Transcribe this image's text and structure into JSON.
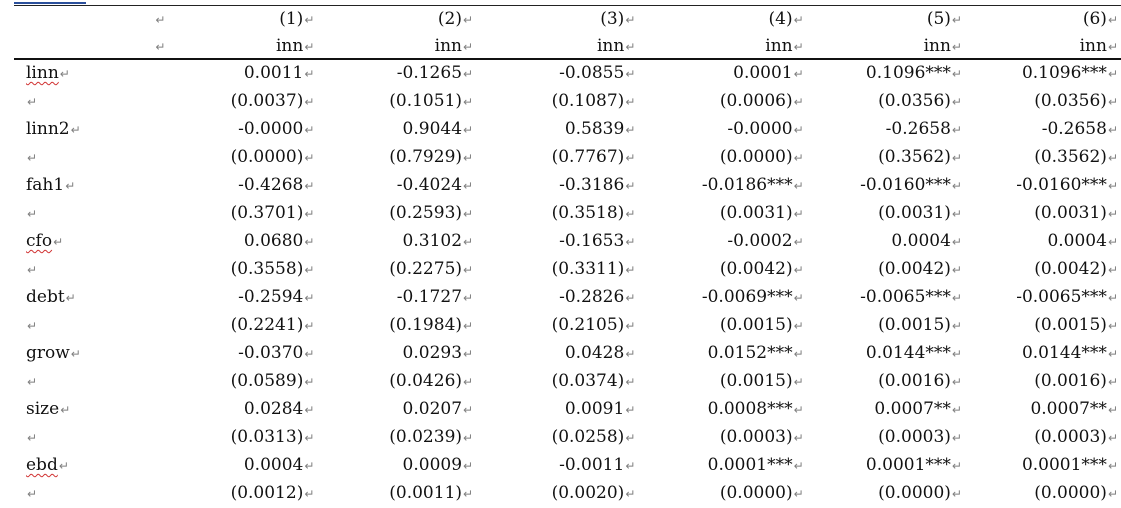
{
  "document": {
    "paragraph_mark": "↵",
    "headers": {
      "numbers": [
        "(1)",
        "(2)",
        "(3)",
        "(4)",
        "(5)",
        "(6)"
      ],
      "depvar": [
        "inn",
        "inn",
        "inn",
        "inn",
        "inn",
        "inn"
      ]
    },
    "rows": [
      {
        "var": "linn",
        "squiggle": true,
        "coef": [
          "0.0011",
          "-0.1265",
          "-0.0855",
          "0.0001",
          "0.1096***",
          "0.1096***"
        ],
        "se": [
          "(0.0037)",
          "(0.1051)",
          "(0.1087)",
          "(0.0006)",
          "(0.0356)",
          "(0.0356)"
        ]
      },
      {
        "var": "linn2",
        "squiggle": false,
        "coef": [
          "-0.0000",
          "0.9044",
          "0.5839",
          "-0.0000",
          "-0.2658",
          "-0.2658"
        ],
        "se": [
          "(0.0000)",
          "(0.7929)",
          "(0.7767)",
          "(0.0000)",
          "(0.3562)",
          "(0.3562)"
        ]
      },
      {
        "var": "fah1",
        "squiggle": false,
        "coef": [
          "-0.4268",
          "-0.4024",
          "-0.3186",
          "-0.0186***",
          "-0.0160***",
          "-0.0160***"
        ],
        "se": [
          "(0.3701)",
          "(0.2593)",
          "(0.3518)",
          "(0.0031)",
          "(0.0031)",
          "(0.0031)"
        ]
      },
      {
        "var": "cfo",
        "squiggle": true,
        "coef": [
          "0.0680",
          "0.3102",
          "-0.1653",
          "-0.0002",
          "0.0004",
          "0.0004"
        ],
        "se": [
          "(0.3558)",
          "(0.2275)",
          "(0.3311)",
          "(0.0042)",
          "(0.0042)",
          "(0.0042)"
        ]
      },
      {
        "var": "debt",
        "squiggle": false,
        "coef": [
          "-0.2594",
          "-0.1727",
          "-0.2826",
          "-0.0069***",
          "-0.0065***",
          "-0.0065***"
        ],
        "se": [
          "(0.2241)",
          "(0.1984)",
          "(0.2105)",
          "(0.0015)",
          "(0.0015)",
          "(0.0015)"
        ]
      },
      {
        "var": "grow",
        "squiggle": false,
        "coef": [
          "-0.0370",
          "0.0293",
          "0.0428",
          "0.0152***",
          "0.0144***",
          "0.0144***"
        ],
        "se": [
          "(0.0589)",
          "(0.0426)",
          "(0.0374)",
          "(0.0015)",
          "(0.0016)",
          "(0.0016)"
        ]
      },
      {
        "var": "size",
        "squiggle": false,
        "coef": [
          "0.0284",
          "0.0207",
          "0.0091",
          "0.0008***",
          "0.0007**",
          "0.0007**"
        ],
        "se": [
          "(0.0313)",
          "(0.0239)",
          "(0.0258)",
          "(0.0003)",
          "(0.0003)",
          "(0.0003)"
        ]
      },
      {
        "var": "ebd",
        "squiggle": true,
        "coef": [
          "0.0004",
          "0.0009",
          "-0.0011",
          "0.0001***",
          "0.0001***",
          "0.0001***"
        ],
        "se": [
          "(0.0012)",
          "(0.0011)",
          "(0.0020)",
          "(0.0000)",
          "(0.0000)",
          "(0.0000)"
        ]
      }
    ]
  },
  "colors": {
    "text": "#111111",
    "rule": "#222222",
    "paragraph_mark": "#7f7f7f",
    "spellcheck_squiggle": "#d03030",
    "link_underline": "#2b4f9b"
  }
}
